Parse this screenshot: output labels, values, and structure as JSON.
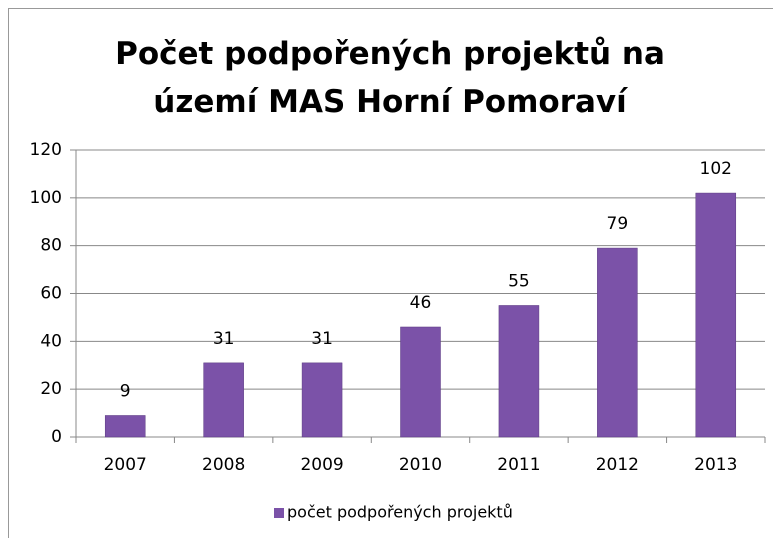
{
  "chart_data": {
    "type": "bar",
    "title": "Počet podpořených projektů na území MAS Horní Pomoraví",
    "categories": [
      "2007",
      "2008",
      "2009",
      "2010",
      "2011",
      "2012",
      "2013"
    ],
    "series": [
      {
        "name": "počet podpořených projektů",
        "color": "#7b52a8",
        "values": [
          9,
          31,
          31,
          46,
          55,
          79,
          102
        ]
      }
    ],
    "ylim": [
      0,
      120
    ],
    "yticks": [
      0,
      20,
      40,
      60,
      80,
      100,
      120
    ],
    "grid": true,
    "legend": "bottom"
  }
}
